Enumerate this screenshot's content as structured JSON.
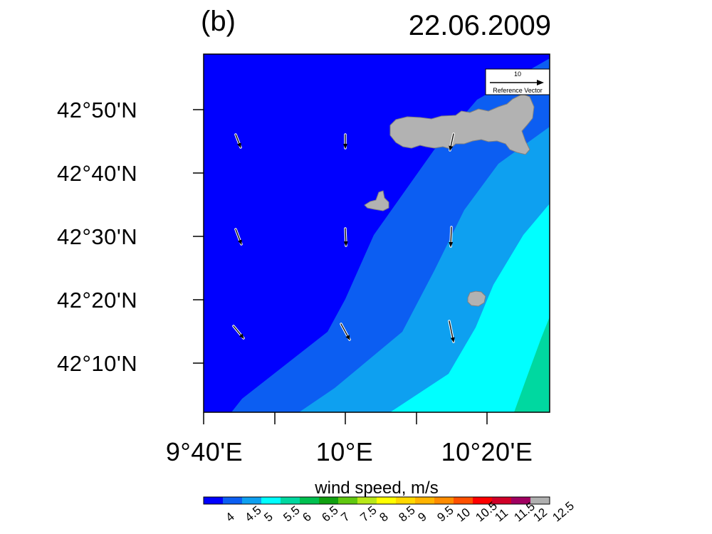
{
  "header": {
    "panel": "(b)",
    "date": "22.06.2009"
  },
  "axes": {
    "lat_ticks": [
      "42°50'N",
      "42°40'N",
      "42°30'N",
      "42°20'N",
      "42°10'N"
    ],
    "lon_ticks": [
      "9°40'E",
      "10°E",
      "10°20'E"
    ]
  },
  "reference_vector": {
    "value": "10",
    "label": "Reference Vector"
  },
  "colorbar": {
    "title": "wind speed, m/s",
    "ticks": [
      "4",
      "4.5",
      "5",
      "5.5",
      "6",
      "6.5",
      "7",
      "7.5",
      "8",
      "8.5",
      "9",
      "9.5",
      "10",
      "10.5",
      "11",
      "11.5",
      "12",
      "12.5"
    ],
    "colors": [
      "#0000ff",
      "#0c5ef2",
      "#0ea0f0",
      "#00ffff",
      "#00d8a0",
      "#00c050",
      "#10a010",
      "#60c810",
      "#b8e818",
      "#ffff00",
      "#ffd800",
      "#ffb400",
      "#ff8c00",
      "#ff5000",
      "#ff0000",
      "#d00028",
      "#a00060",
      "#b0b0b0"
    ]
  },
  "map": {
    "land_color": "#b2b2b2",
    "contour_colors": {
      "4": "#0000ff",
      "4.5": "#0c5ef2",
      "5": "#0ea0f0",
      "5.5": "#00ffff",
      "6": "#00d8a0"
    }
  }
}
